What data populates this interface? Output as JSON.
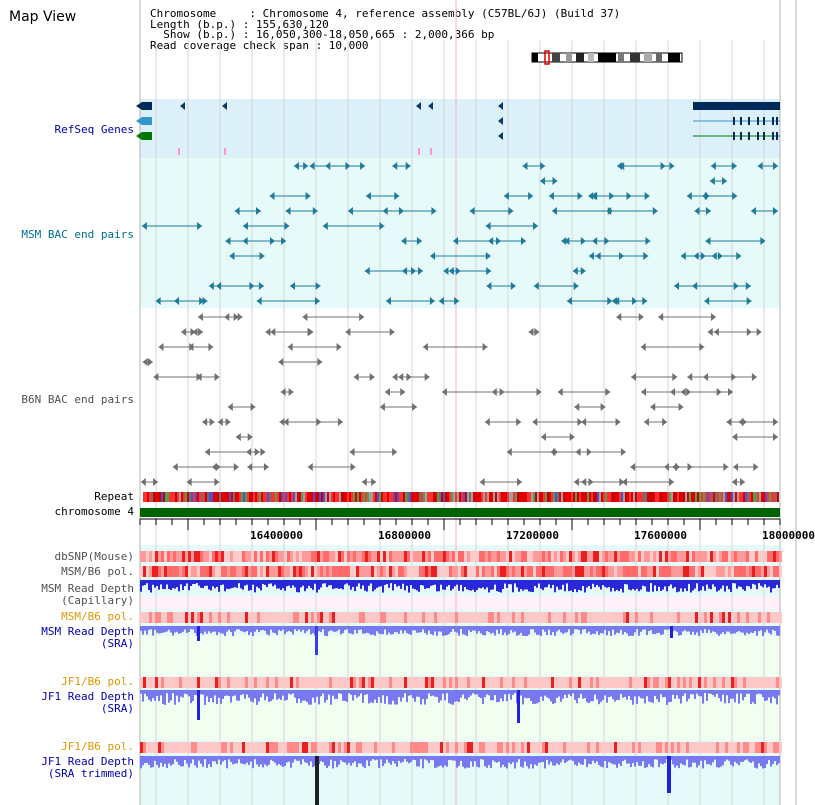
{
  "title": "Map View",
  "info": {
    "chromosome_line": "Chromosome     : Chromosome 4, reference assembly (C57BL/6J) (Build 37)",
    "length_line": "Length (b.p.) : 155,630,120",
    "show_line": "  Show (b.p.) : 16,050,300-18,050,665 : 2,000,366 bp",
    "span_line": "Read coverage check span : 10,000"
  },
  "tracks": {
    "refseq": "RefSeq Genes",
    "msm_bac": "MSM BAC end pairs",
    "b6n_bac": "B6N BAC end pairs",
    "repeat": "Repeat",
    "chromosome": "chromosome 4",
    "dbsnp": "dbSNP(Mouse)",
    "msm_b6_pol": "MSM/B6 pol.",
    "msm_depth_cap_1": "MSM Read Depth",
    "msm_depth_cap_2": "(Capillary)",
    "msm_b6_pol_2": "MSM/B6 pol.",
    "msm_depth_sra_1": "MSM Read Depth",
    "msm_depth_sra_2": "(SRA)",
    "jf1_b6_pol": "JF1/B6 pol.",
    "jf1_depth_sra_1": "JF1 Read Depth",
    "jf1_depth_sra_2": "(SRA)",
    "jf1_b6_pol_2": "JF1/B6 pol.",
    "jf1_depth_trim_1": "JF1 Read Depth",
    "jf1_depth_trim_2": "(SRA trimmed)"
  },
  "axis": {
    "ticks": [
      "16400000",
      "16800000",
      "17200000",
      "17600000",
      "18000000"
    ]
  },
  "colors": {
    "refseq_bg": "#dcf0fa",
    "msm_bac_bg": "#e6fafa",
    "msm_bac_feature": "#207a9a",
    "b6n_feature": "#707070",
    "chromosome": "#006400",
    "label_blue": "#0000b4",
    "label_teal": "#006e8c",
    "label_orange": "#e09600",
    "depth_blue": "#2020e0",
    "depth_light": "#7878f0"
  }
}
